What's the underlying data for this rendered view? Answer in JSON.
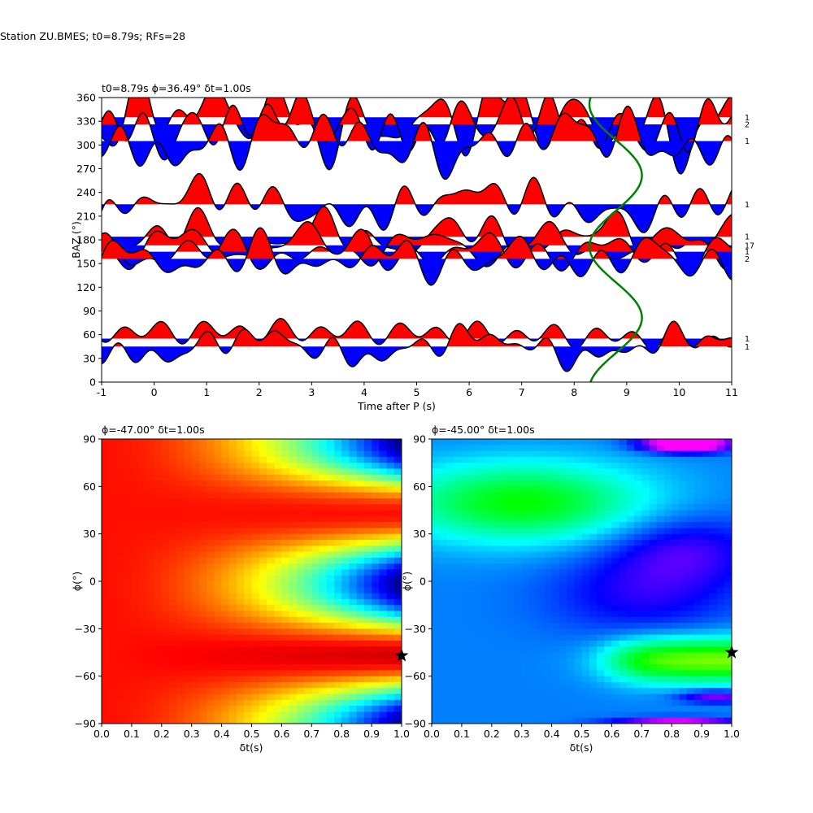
{
  "figure": {
    "suptitle": "Station ZU.BMES; t0=8.79s; RFs=28"
  },
  "chart_data": [
    {
      "type": "line",
      "panel": "receiver-functions",
      "title": "t0=8.79s ϕ=36.49° δt=1.00s",
      "xlabel": "Time after P (s)",
      "ylabel": "BAZ (°)",
      "xlim": [
        -1,
        11
      ],
      "ylim": [
        0,
        360
      ],
      "xticks": [
        -1,
        0,
        1,
        2,
        3,
        4,
        5,
        6,
        7,
        8,
        9,
        10,
        11
      ],
      "yticks": [
        0,
        30,
        60,
        90,
        120,
        150,
        180,
        210,
        240,
        270,
        300,
        330,
        360
      ],
      "fill_positive_color": "#ff0000",
      "fill_negative_color": "#0000ff",
      "line_color": "#000000",
      "traces": [
        {
          "baz": 335,
          "count_label": "1",
          "components": [
            [
              0.2,
              3,
              0.6
            ],
            [
              1.1,
              0.5,
              1.8
            ],
            [
              4.5,
              3,
              3.5
            ],
            [
              7.6,
              4,
              2.0
            ],
            [
              2.8,
              1.6,
              0.9
            ],
            [
              9.5,
              -2,
              1.2
            ]
          ]
        },
        {
          "baz": 326,
          "count_label": "2",
          "components": [
            [
              1.4,
              4.4,
              1.7
            ],
            [
              3.9,
              4.1,
              0.8
            ],
            [
              6.2,
              3.6,
              1.5
            ],
            [
              8.3,
              2.4,
              2.2
            ],
            [
              10.5,
              -2,
              1.0
            ]
          ]
        },
        {
          "baz": 305,
          "count_label": "1",
          "components": [
            [
              1.2,
              -1.8,
              2.0
            ],
            [
              4.6,
              3.5,
              1.5
            ],
            [
              6.4,
              0.3,
              2.0
            ],
            [
              9.8,
              1.3,
              1.5
            ]
          ]
        },
        {
          "baz": 225,
          "count_label": "1",
          "components": [
            [
              1.2,
              0.3,
              2.0
            ],
            [
              4.8,
              3.9,
              1.0
            ],
            [
              7.8,
              1.8,
              1.6
            ],
            [
              10.0,
              -1.6,
              1.0
            ]
          ]
        },
        {
          "baz": 184,
          "count_label": "1",
          "components": [
            [
              2.4,
              0.0,
              2.0
            ],
            [
              5.6,
              2.7,
              1.5
            ],
            [
              7.9,
              1.2,
              1.0
            ],
            [
              10.0,
              0.0,
              0.5
            ]
          ]
        },
        {
          "baz": 173,
          "count_label": "17",
          "components": [
            [
              2.7,
              0.2,
              2.2
            ],
            [
              4.5,
              0.4,
              0.5
            ],
            [
              6.6,
              1.8,
              0.8
            ],
            [
              8.3,
              1.8,
              0.7
            ]
          ]
        },
        {
          "baz": 165,
          "count_label": "1",
          "components": [
            [
              2.5,
              -1.4,
              1.4
            ],
            [
              5.4,
              5.8,
              1.2
            ],
            [
              7.6,
              2.6,
              1.4
            ]
          ]
        },
        {
          "baz": 156,
          "count_label": "2",
          "components": [
            [
              2.5,
              3.2,
              1.5
            ],
            [
              5.1,
              3.6,
              1.2
            ],
            [
              6.7,
              0.4,
              1.2
            ],
            [
              8.7,
              3.0,
              1.2
            ]
          ]
        },
        {
          "baz": 55,
          "count_label": "1",
          "components": [
            [
              0.2,
              1.2,
              1.2
            ],
            [
              5.0,
              2.0,
              0.7
            ],
            [
              8.4,
              0.2,
              1.3
            ]
          ]
        },
        {
          "baz": 45,
          "count_label": "1",
          "components": [
            [
              1.5,
              -1.3,
              1.7
            ],
            [
              4.9,
              3.4,
              0.8
            ],
            [
              7.7,
              0.8,
              1.0
            ],
            [
              10.7,
              2.6,
              0.8
            ]
          ]
        }
      ],
      "t0_curve": {
        "color": "#008000",
        "t_center": 8.79,
        "amplitude": 0.5,
        "period_baz": 180,
        "phase_baz": 36.49
      }
    },
    {
      "type": "heatmap",
      "panel": "grid-search-left",
      "title": "ϕ=-47.00° δt=1.00s",
      "xlabel": "δt(s)",
      "ylabel": "ϕ(°)",
      "xlim": [
        0.0,
        1.0
      ],
      "ylim": [
        -90,
        90
      ],
      "xticks": [
        "0.0",
        "0.1",
        "0.2",
        "0.3",
        "0.4",
        "0.5",
        "0.6",
        "0.7",
        "0.8",
        "0.9",
        "1.0"
      ],
      "yticks": [
        -90,
        -60,
        -30,
        0,
        30,
        60,
        90
      ],
      "colormap": "jet",
      "best": {
        "dt": 1.0,
        "phi": -47
      },
      "marker": "star",
      "marker_color": "#000000"
    },
    {
      "type": "heatmap",
      "panel": "grid-search-right",
      "title": "ϕ=-45.00° δt=1.00s",
      "xlabel": "δt(s)",
      "ylabel": "ϕ(°)",
      "xlim": [
        0.0,
        1.0
      ],
      "ylim": [
        -90,
        90
      ],
      "xticks": [
        "0.0",
        "0.1",
        "0.2",
        "0.3",
        "0.4",
        "0.5",
        "0.6",
        "0.7",
        "0.8",
        "0.9",
        "1.0"
      ],
      "yticks": [
        -90,
        -60,
        -30,
        0,
        30,
        60,
        90
      ],
      "colormap": "hsv",
      "best": {
        "dt": 1.0,
        "phi": -45
      },
      "marker": "star",
      "marker_color": "#000000"
    }
  ]
}
